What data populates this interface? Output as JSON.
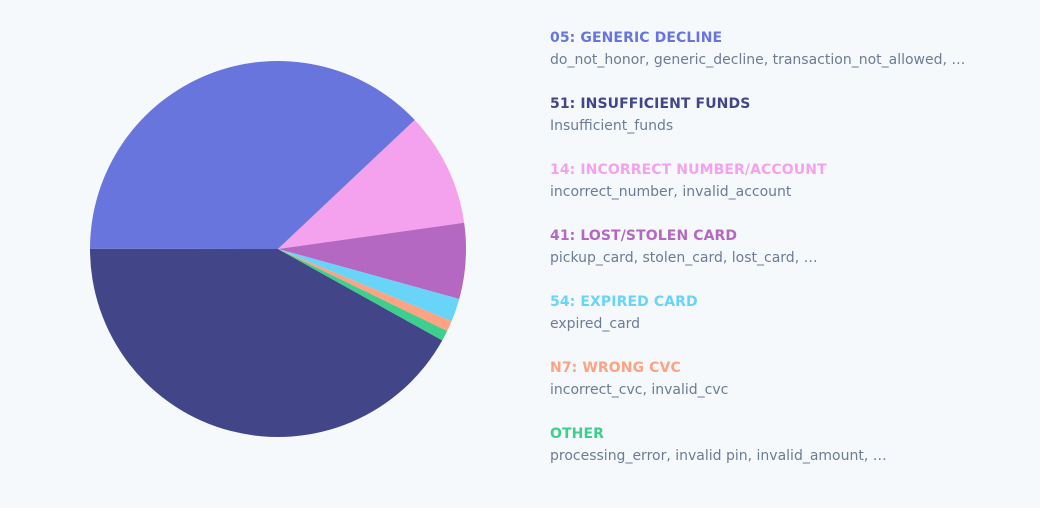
{
  "chart_data": {
    "type": "pie",
    "title": "",
    "legend_position": "right",
    "start_angle_deg": 119.1,
    "slices": [
      {
        "label": "51: INSUFFICIENT FUNDS",
        "value": 41.9,
        "color": "#424689"
      },
      {
        "label": "05: GENERIC DECLINE",
        "value": 37.9,
        "color": "#6875dc"
      },
      {
        "label": "14: INCORRECT NUMBER/ACCOUNT",
        "value": 9.8,
        "color": "#f4a2ed"
      },
      {
        "label": "41: LOST/STOLEN CARD",
        "value": 6.5,
        "color": "#b468c2"
      },
      {
        "label": "54: EXPIRED CARD",
        "value": 2.0,
        "color": "#68d4f8"
      },
      {
        "label": "N7: WRONG CVC",
        "value": 0.9,
        "color": "#fea282"
      },
      {
        "label": "OTHER",
        "value": 0.9,
        "color": "#3ecf8e"
      }
    ]
  },
  "legend": [
    {
      "title": "05: GENERIC DECLINE",
      "desc": "do_not_honor, generic_decline, transaction_not_allowed, …",
      "color": "#6875dc"
    },
    {
      "title": "51: INSUFFICIENT FUNDS",
      "desc": "Insufficient_funds",
      "color": "#424689"
    },
    {
      "title": "14: INCORRECT NUMBER/ACCOUNT",
      "desc": "incorrect_number, invalid_account",
      "color": "#f4a2ed"
    },
    {
      "title": "41: LOST/STOLEN CARD",
      "desc": "pickup_card, stolen_card, lost_card, …",
      "color": "#b468c2"
    },
    {
      "title": "54: EXPIRED CARD",
      "desc": "expired_card",
      "color": "#68d4f8"
    },
    {
      "title": "N7: WRONG CVC",
      "desc": "incorrect_cvc, invalid_cvc",
      "color": "#fea282"
    },
    {
      "title": "OTHER",
      "desc": "processing_error, invalid pin, invalid_amount, …",
      "color": "#3ecf8e"
    }
  ]
}
